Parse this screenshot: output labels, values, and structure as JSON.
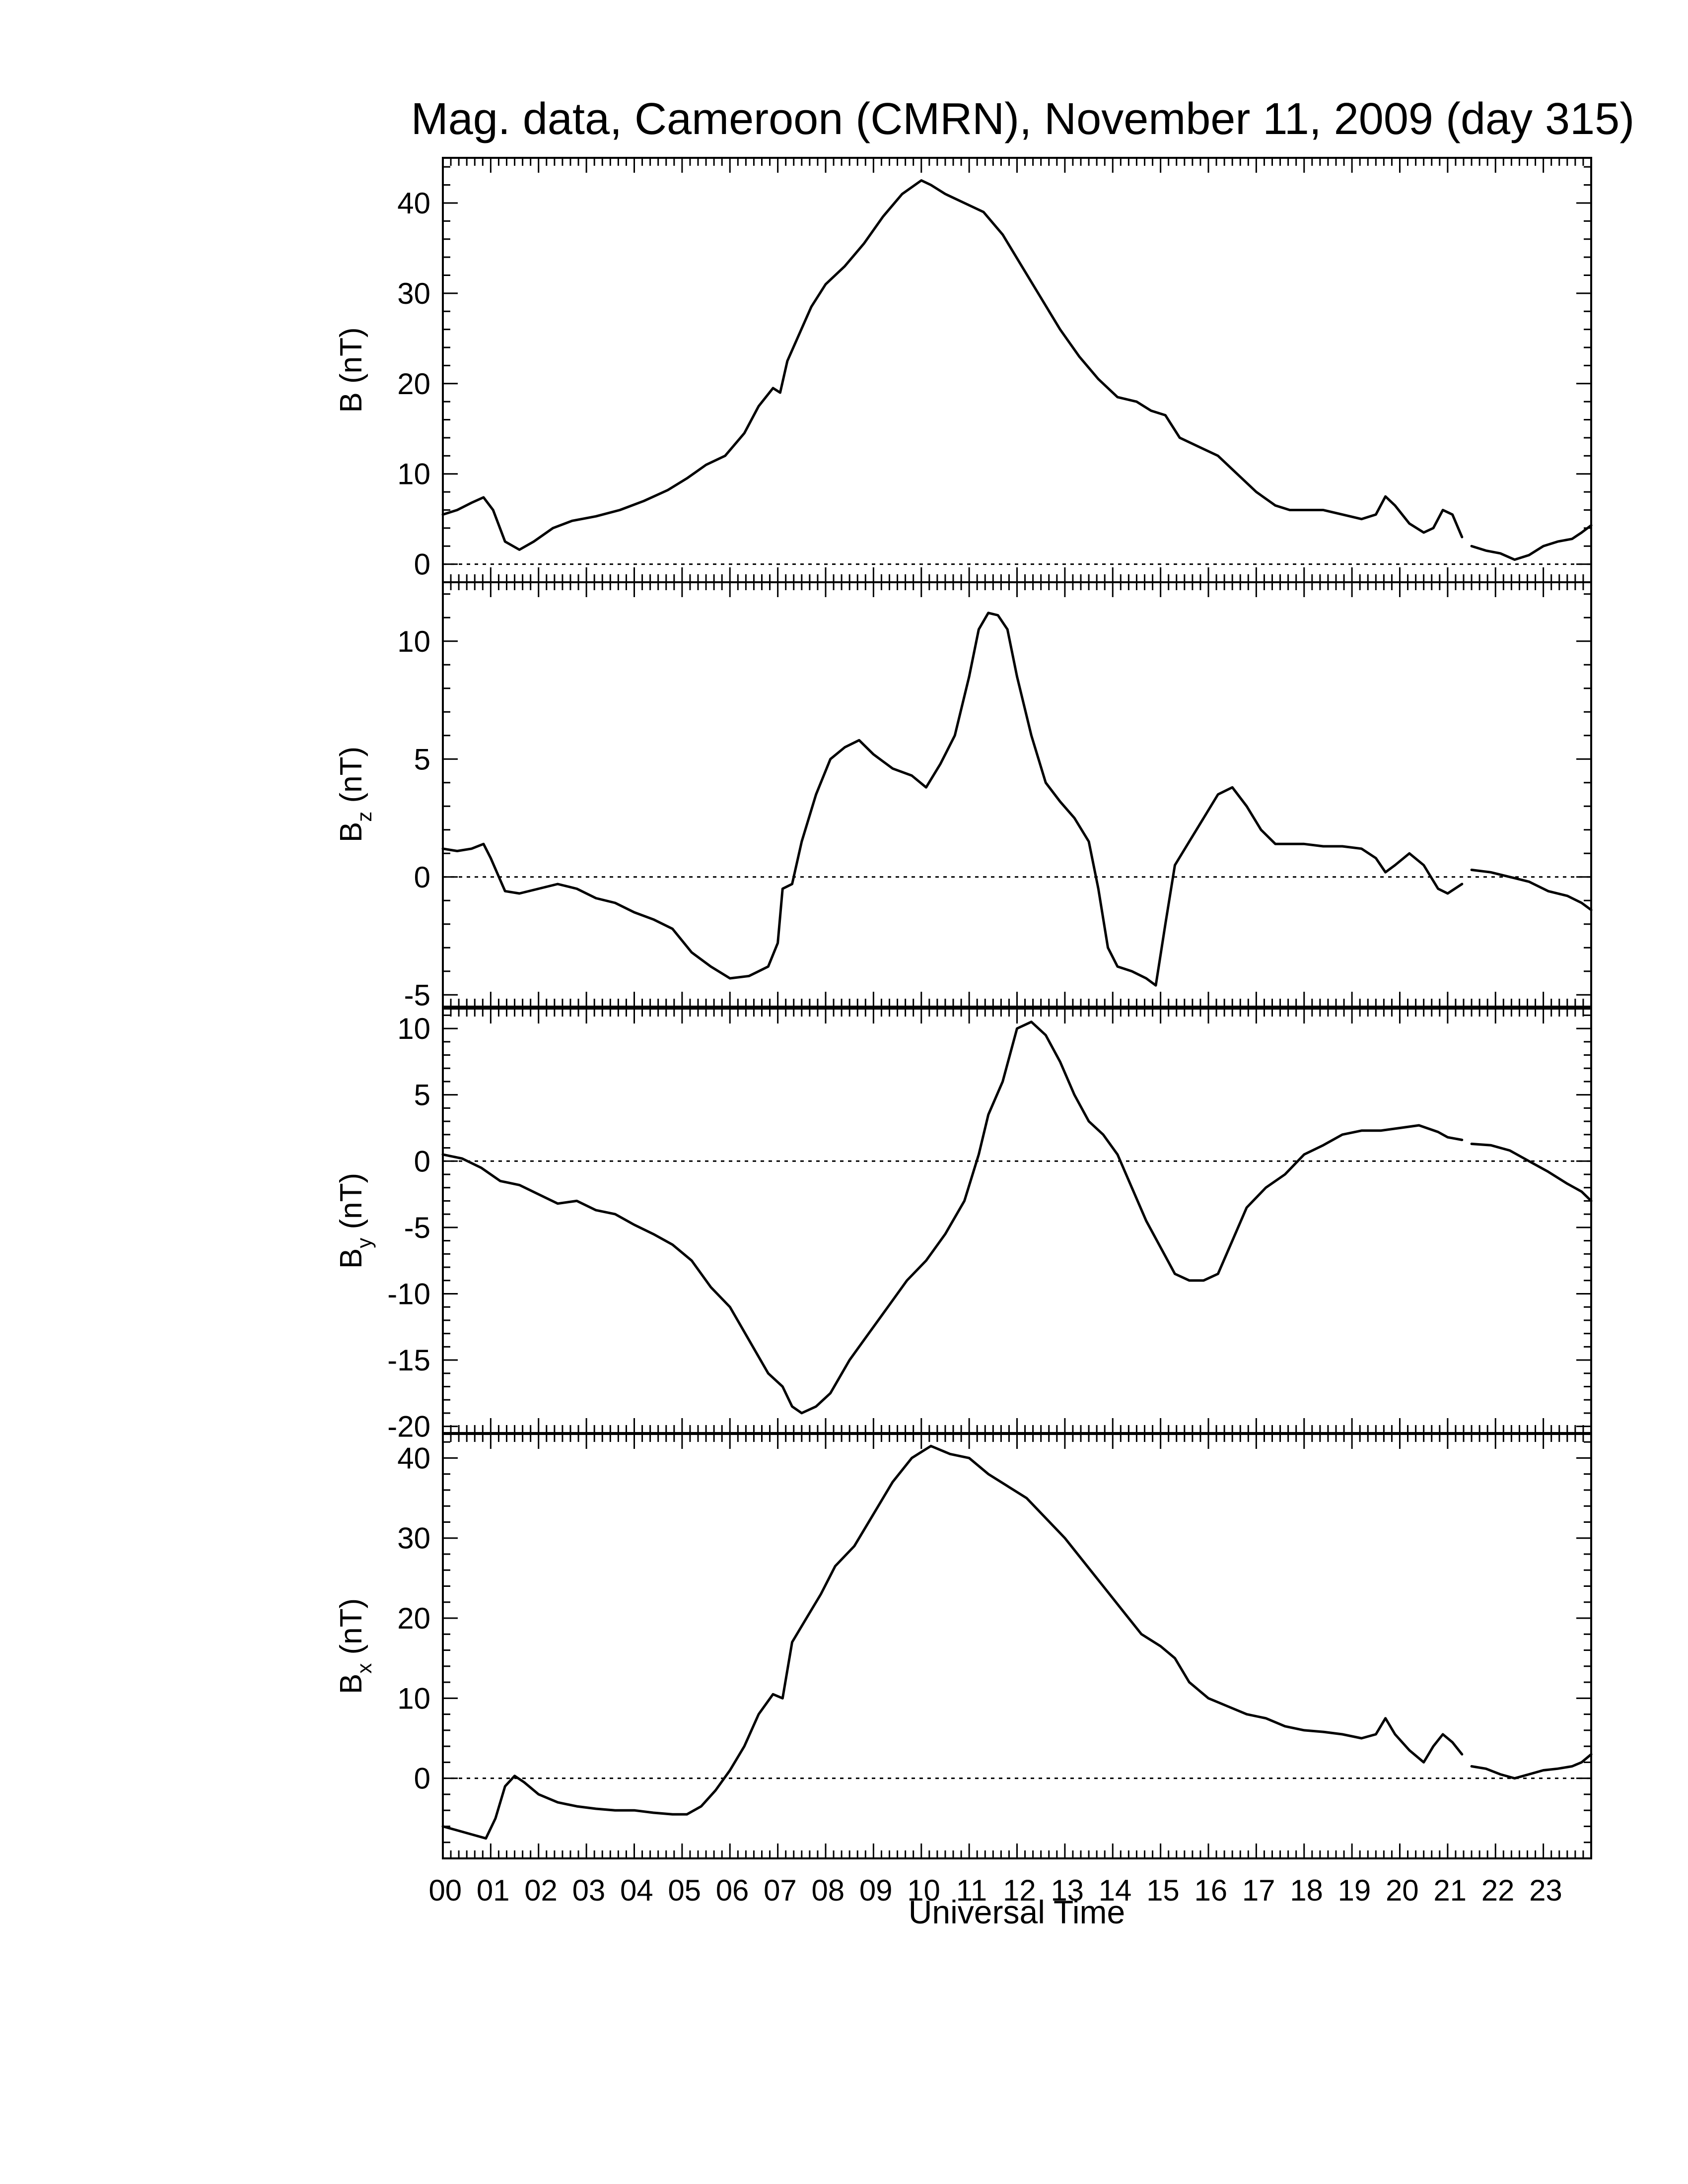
{
  "title": "Mag. data, Cameroon (CMRN), November 11, 2009 (day 315)",
  "xlabel": "Universal Time",
  "x_tick_labels": [
    "00",
    "01",
    "02",
    "03",
    "04",
    "05",
    "06",
    "07",
    "08",
    "09",
    "10",
    "11",
    "12",
    "13",
    "14",
    "15",
    "16",
    "17",
    "18",
    "19",
    "20",
    "21",
    "22",
    "23"
  ],
  "colors": {
    "line": "#000000",
    "zero_line": "#000000",
    "background": "#ffffff"
  },
  "chart_data": [
    {
      "type": "line",
      "ylabel_main": "B",
      "ylabel_sub": "",
      "ylabel_unit": "(nT)",
      "ylim": [
        -2,
        45
      ],
      "yticks": [
        0,
        10,
        20,
        30,
        40
      ],
      "ytick_labels": [
        "0",
        "10",
        "20",
        "30",
        "40"
      ],
      "xlim": [
        0,
        24
      ],
      "zero_line": true,
      "segments": [
        {
          "x": [
            0.0,
            0.3,
            0.6,
            0.85,
            1.05,
            1.3,
            1.6,
            1.9,
            2.3,
            2.7,
            3.2,
            3.7,
            4.2,
            4.7,
            5.1,
            5.5,
            5.9,
            6.3,
            6.6,
            6.9,
            7.05,
            7.2,
            7.45,
            7.7,
            8.0,
            8.4,
            8.8,
            9.2,
            9.6,
            10.0,
            10.2,
            10.5,
            10.9,
            11.3,
            11.7,
            12.1,
            12.5,
            12.9,
            13.3,
            13.7,
            14.1,
            14.5,
            14.8,
            15.1,
            15.4,
            15.8,
            16.2,
            16.6,
            17.0,
            17.4,
            17.7,
            18.0,
            18.4,
            18.8,
            19.2,
            19.5,
            19.7,
            19.9,
            20.2,
            20.5,
            20.7,
            20.9,
            21.1,
            21.3
          ],
          "values": [
            5.5,
            6.0,
            6.8,
            7.4,
            6.0,
            2.5,
            1.6,
            2.5,
            4.0,
            4.8,
            5.3,
            6.0,
            7.0,
            8.2,
            9.5,
            11.0,
            12.0,
            14.5,
            17.5,
            19.5,
            19.0,
            22.5,
            25.5,
            28.5,
            31.0,
            33.0,
            35.5,
            38.5,
            41.0,
            42.5,
            42.0,
            41.0,
            40.0,
            39.0,
            36.5,
            33.0,
            29.5,
            26.0,
            23.0,
            20.5,
            18.5,
            18.0,
            17.0,
            16.5,
            14.0,
            13.0,
            12.0,
            10.0,
            8.0,
            6.5,
            6.0,
            6.0,
            6.0,
            5.5,
            5.0,
            5.5,
            7.5,
            6.5,
            4.5,
            3.5,
            4.0,
            6.0,
            5.5,
            3.0
          ]
        },
        {
          "x": [
            21.5,
            21.8,
            22.1,
            22.4,
            22.7,
            23.0,
            23.3,
            23.6,
            23.8,
            24.0
          ],
          "values": [
            2.0,
            1.5,
            1.2,
            0.5,
            1.0,
            2.0,
            2.5,
            2.8,
            3.5,
            4.3
          ]
        }
      ]
    },
    {
      "type": "line",
      "ylabel_main": "B",
      "ylabel_sub": "z",
      "ylabel_unit": "(nT)",
      "ylim": [
        -5.5,
        12.5
      ],
      "yticks": [
        -5,
        0,
        5,
        10
      ],
      "ytick_labels": [
        "-5",
        "0",
        "5",
        "10"
      ],
      "xlim": [
        0,
        24
      ],
      "zero_line": true,
      "segments": [
        {
          "x": [
            0.0,
            0.3,
            0.6,
            0.85,
            1.0,
            1.3,
            1.6,
            2.0,
            2.4,
            2.8,
            3.2,
            3.6,
            4.0,
            4.4,
            4.8,
            5.2,
            5.6,
            6.0,
            6.4,
            6.8,
            7.0,
            7.1,
            7.3,
            7.5,
            7.8,
            8.1,
            8.4,
            8.7,
            9.0,
            9.4,
            9.8,
            10.1,
            10.4,
            10.7,
            11.0,
            11.2,
            11.4,
            11.6,
            11.8,
            12.0,
            12.3,
            12.6,
            12.9,
            13.2,
            13.5,
            13.7,
            13.9,
            14.1,
            14.4,
            14.7,
            14.9,
            15.1,
            15.3,
            15.6,
            15.9,
            16.2,
            16.5,
            16.8,
            17.1,
            17.4,
            17.7,
            18.0,
            18.4,
            18.8,
            19.2,
            19.5,
            19.7,
            19.9,
            20.2,
            20.5,
            20.8,
            21.0,
            21.3
          ],
          "values": [
            1.2,
            1.1,
            1.2,
            1.4,
            0.8,
            -0.6,
            -0.7,
            -0.5,
            -0.3,
            -0.5,
            -0.9,
            -1.1,
            -1.5,
            -1.8,
            -2.2,
            -3.2,
            -3.8,
            -4.3,
            -4.2,
            -3.8,
            -2.8,
            -0.5,
            -0.3,
            1.5,
            3.5,
            5.0,
            5.5,
            5.8,
            5.2,
            4.6,
            4.3,
            3.8,
            4.8,
            6.0,
            8.5,
            10.5,
            11.2,
            11.1,
            10.5,
            8.5,
            6.0,
            4.0,
            3.2,
            2.5,
            1.5,
            -0.5,
            -3.0,
            -3.8,
            -4.0,
            -4.3,
            -4.6,
            -2.0,
            0.5,
            1.5,
            2.5,
            3.5,
            3.8,
            3.0,
            2.0,
            1.4,
            1.4,
            1.4,
            1.3,
            1.3,
            1.2,
            0.8,
            0.2,
            0.5,
            1.0,
            0.5,
            -0.5,
            -0.7,
            -0.3
          ]
        },
        {
          "x": [
            21.5,
            21.9,
            22.3,
            22.7,
            23.1,
            23.5,
            23.8,
            24.0
          ],
          "values": [
            0.3,
            0.2,
            0.0,
            -0.2,
            -0.6,
            -0.8,
            -1.1,
            -1.4
          ]
        }
      ]
    },
    {
      "type": "line",
      "ylabel_main": "B",
      "ylabel_sub": "y",
      "ylabel_unit": "(nT)",
      "ylim": [
        -20.5,
        11.5
      ],
      "yticks": [
        -20,
        -15,
        -10,
        -5,
        0,
        5,
        10
      ],
      "ytick_labels": [
        "-20",
        "-15",
        "-10",
        "-5",
        "0",
        "5",
        "10"
      ],
      "xlim": [
        0,
        24
      ],
      "zero_line": true,
      "segments": [
        {
          "x": [
            0.0,
            0.4,
            0.8,
            1.2,
            1.6,
            2.0,
            2.4,
            2.8,
            3.2,
            3.6,
            4.0,
            4.4,
            4.8,
            5.2,
            5.6,
            6.0,
            6.4,
            6.8,
            7.1,
            7.3,
            7.5,
            7.8,
            8.1,
            8.5,
            8.9,
            9.3,
            9.7,
            10.1,
            10.5,
            10.9,
            11.2,
            11.4,
            11.7,
            12.0,
            12.3,
            12.6,
            12.9,
            13.2,
            13.5,
            13.8,
            14.1,
            14.4,
            14.7,
            15.0,
            15.3,
            15.6,
            15.9,
            16.2,
            16.5,
            16.8,
            17.2,
            17.6,
            18.0,
            18.4,
            18.8,
            19.2,
            19.6,
            20.0,
            20.4,
            20.8,
            21.0,
            21.3
          ],
          "values": [
            0.5,
            0.2,
            -0.5,
            -1.5,
            -1.8,
            -2.5,
            -3.2,
            -3.0,
            -3.7,
            -4.0,
            -4.8,
            -5.5,
            -6.3,
            -7.5,
            -9.5,
            -11.0,
            -13.5,
            -16.0,
            -17.0,
            -18.5,
            -19.0,
            -18.5,
            -17.5,
            -15.0,
            -13.0,
            -11.0,
            -9.0,
            -7.5,
            -5.5,
            -3.0,
            0.5,
            3.5,
            6.0,
            10.0,
            10.5,
            9.5,
            7.5,
            5.0,
            3.0,
            2.0,
            0.5,
            -2.0,
            -4.5,
            -6.5,
            -8.5,
            -9.0,
            -9.0,
            -8.5,
            -6.0,
            -3.5,
            -2.0,
            -1.0,
            0.5,
            1.2,
            2.0,
            2.3,
            2.3,
            2.5,
            2.7,
            2.2,
            1.8,
            1.6
          ]
        },
        {
          "x": [
            21.5,
            21.9,
            22.3,
            22.7,
            23.1,
            23.5,
            23.8,
            24.0
          ],
          "values": [
            1.3,
            1.2,
            0.8,
            0.0,
            -0.8,
            -1.7,
            -2.3,
            -3.0
          ]
        }
      ]
    },
    {
      "type": "line",
      "ylabel_main": "B",
      "ylabel_sub": "x",
      "ylabel_unit": "(nT)",
      "ylim": [
        -10,
        43
      ],
      "yticks": [
        0,
        10,
        20,
        30,
        40
      ],
      "ytick_labels": [
        "0",
        "10",
        "20",
        "30",
        "40"
      ],
      "xlim": [
        0,
        24
      ],
      "zero_line": true,
      "segments": [
        {
          "x": [
            0.0,
            0.3,
            0.6,
            0.9,
            1.1,
            1.3,
            1.5,
            1.7,
            2.0,
            2.4,
            2.8,
            3.2,
            3.6,
            4.0,
            4.4,
            4.8,
            5.1,
            5.4,
            5.7,
            6.0,
            6.3,
            6.6,
            6.9,
            7.1,
            7.3,
            7.6,
            7.9,
            8.2,
            8.6,
            9.0,
            9.4,
            9.8,
            10.2,
            10.6,
            11.0,
            11.4,
            11.8,
            12.2,
            12.6,
            13.0,
            13.4,
            13.8,
            14.2,
            14.6,
            15.0,
            15.3,
            15.6,
            16.0,
            16.4,
            16.8,
            17.2,
            17.6,
            18.0,
            18.4,
            18.8,
            19.2,
            19.5,
            19.7,
            19.9,
            20.2,
            20.5,
            20.7,
            20.9,
            21.1,
            21.3
          ],
          "values": [
            -6.0,
            -6.5,
            -7.0,
            -7.5,
            -5.0,
            -1.0,
            0.3,
            -0.5,
            -2.0,
            -3.0,
            -3.5,
            -3.8,
            -4.0,
            -4.0,
            -4.3,
            -4.5,
            -4.5,
            -3.5,
            -1.5,
            1.0,
            4.0,
            8.0,
            10.5,
            10.0,
            17.0,
            20.0,
            23.0,
            26.5,
            29.0,
            33.0,
            37.0,
            40.0,
            41.5,
            40.5,
            40.0,
            38.0,
            36.5,
            35.0,
            32.5,
            30.0,
            27.0,
            24.0,
            21.0,
            18.0,
            16.5,
            15.0,
            12.0,
            10.0,
            9.0,
            8.0,
            7.5,
            6.5,
            6.0,
            5.8,
            5.5,
            5.0,
            5.5,
            7.5,
            5.5,
            3.5,
            2.0,
            4.0,
            5.5,
            4.5,
            3.0
          ]
        },
        {
          "x": [
            21.5,
            21.8,
            22.1,
            22.4,
            22.7,
            23.0,
            23.3,
            23.6,
            23.8,
            24.0
          ],
          "values": [
            1.5,
            1.2,
            0.5,
            0.0,
            0.5,
            1.0,
            1.2,
            1.5,
            2.0,
            3.0
          ]
        }
      ]
    }
  ]
}
